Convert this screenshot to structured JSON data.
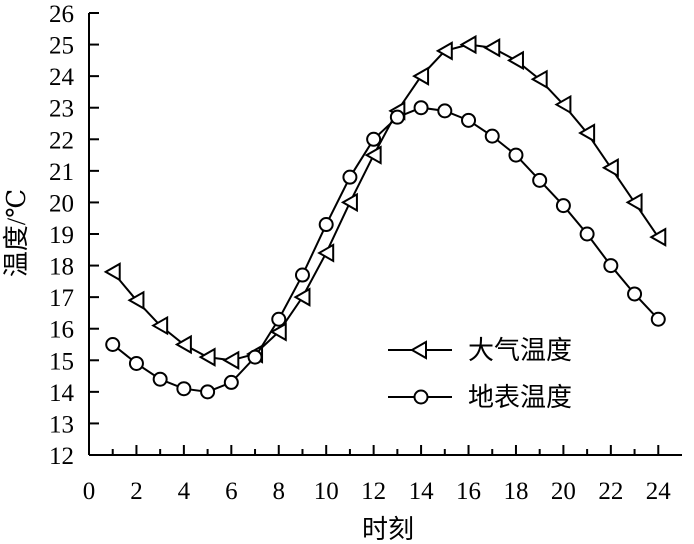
{
  "chart_data": {
    "type": "line",
    "title": "",
    "xlabel": "时刻",
    "ylabel": "温度/℃",
    "xlim": [
      0,
      25
    ],
    "ylim": [
      12,
      26
    ],
    "xticks": [
      0,
      2,
      4,
      6,
      8,
      10,
      12,
      14,
      16,
      18,
      20,
      22,
      24
    ],
    "yticks": [
      12,
      13,
      14,
      15,
      16,
      17,
      18,
      19,
      20,
      21,
      22,
      23,
      24,
      25,
      26
    ],
    "grid": false,
    "legend_position": "center-right",
    "series": [
      {
        "name": "大气温度",
        "marker": "left-triangle",
        "color": "#000000",
        "x": [
          1,
          2,
          3,
          4,
          5,
          6,
          7,
          8,
          9,
          10,
          11,
          12,
          13,
          14,
          15,
          16,
          17,
          18,
          19,
          20,
          21,
          22,
          23,
          24
        ],
        "y": [
          17.8,
          16.9,
          16.1,
          15.5,
          15.1,
          15.0,
          15.2,
          15.9,
          17.0,
          18.4,
          20.0,
          21.5,
          22.9,
          24.0,
          24.8,
          25.0,
          24.9,
          24.5,
          23.9,
          23.1,
          22.2,
          21.1,
          20.0,
          18.9
        ]
      },
      {
        "name": "地表温度",
        "marker": "circle",
        "color": "#000000",
        "x": [
          1,
          2,
          3,
          4,
          5,
          6,
          7,
          8,
          9,
          10,
          11,
          12,
          13,
          14,
          15,
          16,
          17,
          18,
          19,
          20,
          21,
          22,
          23,
          24
        ],
        "y": [
          15.5,
          14.9,
          14.4,
          14.1,
          14.0,
          14.3,
          15.1,
          16.3,
          17.7,
          19.3,
          20.8,
          22.0,
          22.7,
          23.0,
          22.9,
          22.6,
          22.1,
          21.5,
          20.7,
          19.9,
          19.0,
          18.0,
          17.1,
          16.3
        ]
      }
    ]
  }
}
